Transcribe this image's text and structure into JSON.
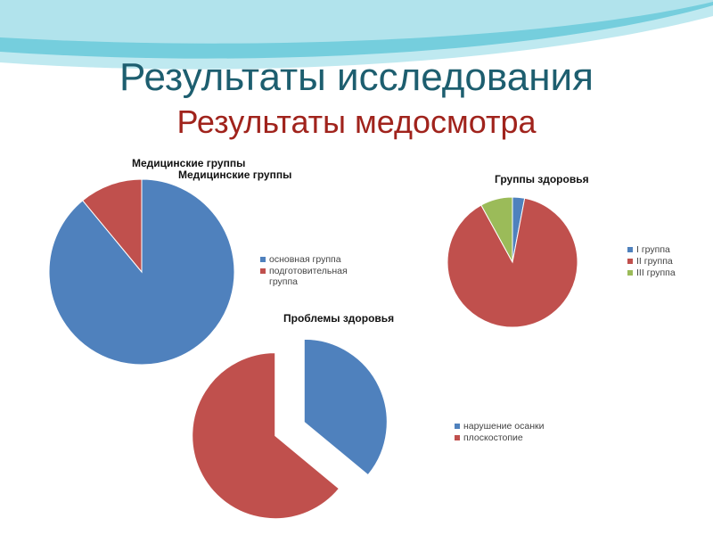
{
  "slide": {
    "title": "Результаты исследования",
    "subtitle": "Результаты медосмотра"
  },
  "colors": {
    "title": "#1d5e6f",
    "subtitle": "#a0231c",
    "blue": "#4f81bd",
    "red": "#c0504d",
    "green": "#9bbb59"
  },
  "chart_data": [
    {
      "type": "pie",
      "title": "Медицинские группы",
      "title_overlay": "Медицинские группы",
      "categories": [
        "основная группа",
        "подготовительная группа"
      ],
      "values": [
        89,
        11
      ],
      "colors": [
        "#4f81bd",
        "#c0504d"
      ],
      "legend": "right"
    },
    {
      "type": "pie",
      "title": "Группы здоровья",
      "categories": [
        "I группа",
        "II группа",
        "III группа"
      ],
      "values": [
        3,
        89,
        8
      ],
      "colors": [
        "#4f81bd",
        "#c0504d",
        "#9bbb59"
      ],
      "legend": "right"
    },
    {
      "type": "pie",
      "title": "Проблемы здоровья",
      "categories": [
        "нарушение осанки",
        "плоскостопие"
      ],
      "values": [
        36,
        64
      ],
      "colors": [
        "#4f81bd",
        "#c0504d"
      ],
      "exploded": true,
      "legend": "right"
    }
  ]
}
